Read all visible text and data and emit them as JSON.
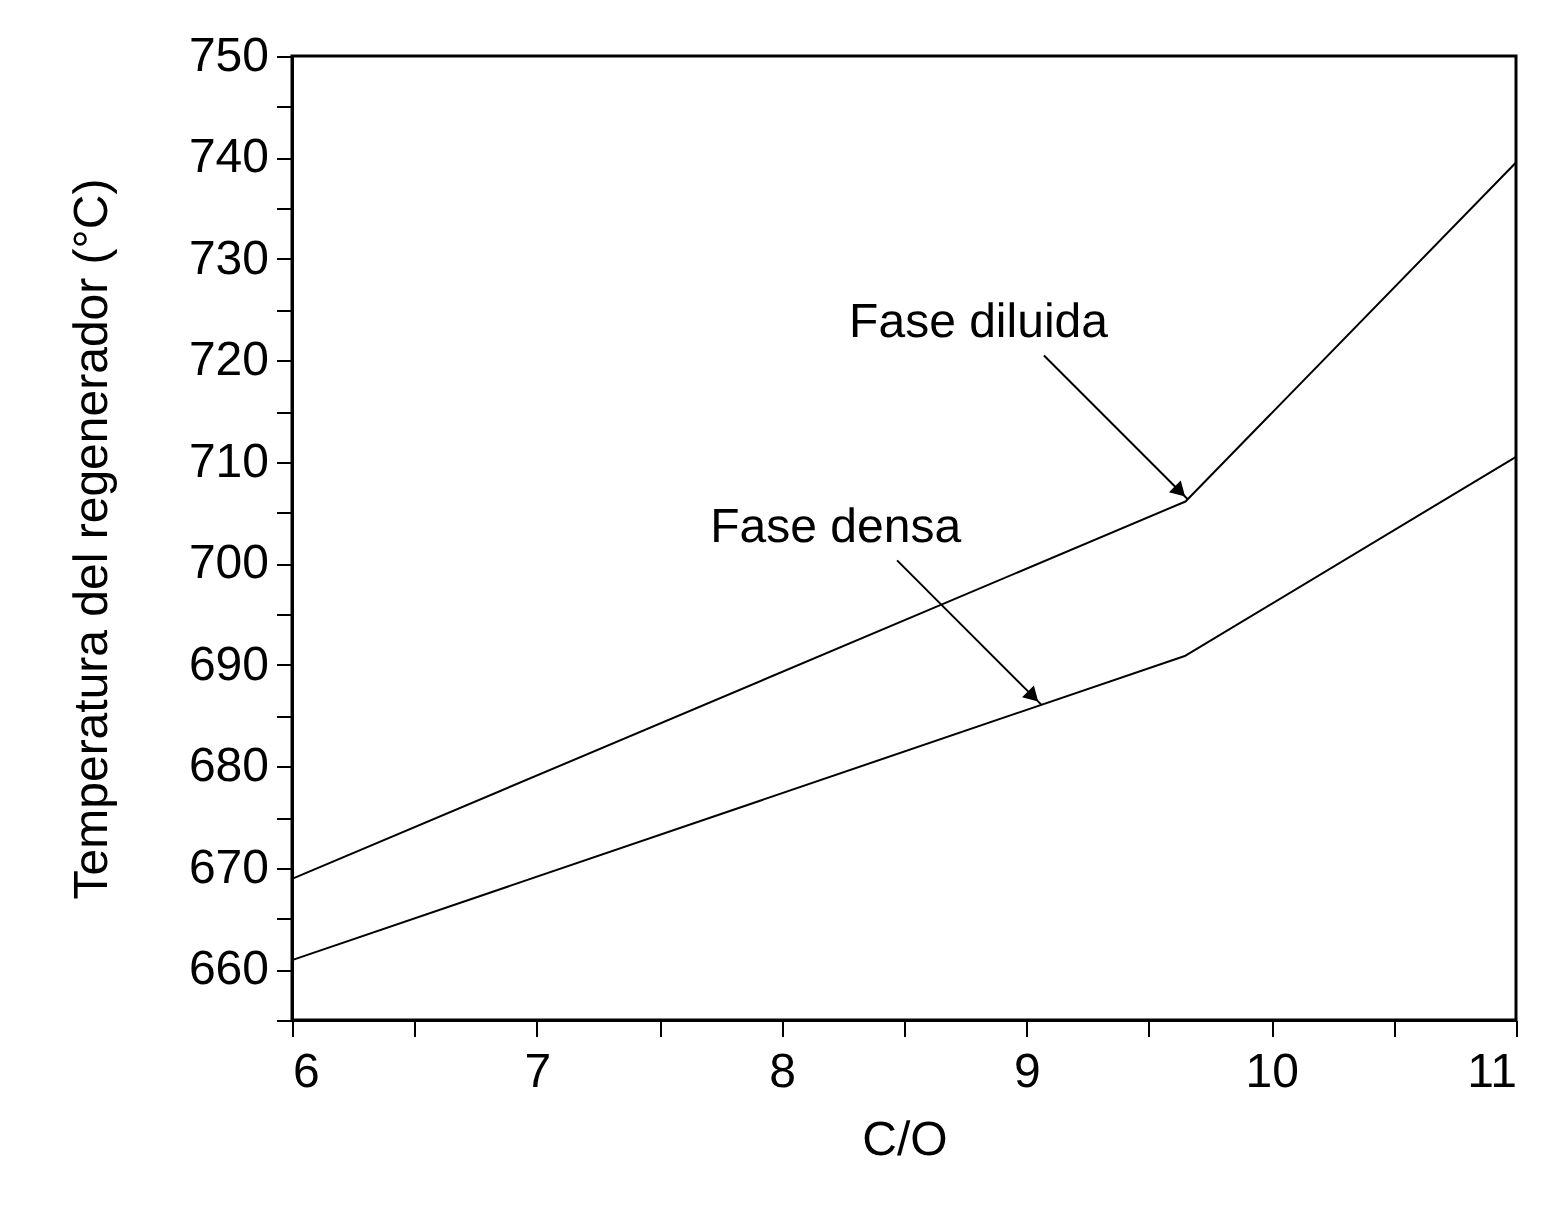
{
  "chart_data": {
    "type": "line",
    "xlabel": "C/O",
    "ylabel": "Temperatura del regenerador (°C)",
    "xlim": [
      6,
      11
    ],
    "ylim": [
      655,
      750
    ],
    "xticks": [
      6,
      {
        "value": 6.5,
        "label": null
      },
      7,
      {
        "value": 7.5,
        "label": null
      },
      8,
      {
        "value": 8.5,
        "label": null
      },
      9,
      {
        "value": 9.5,
        "label": null
      },
      10,
      {
        "value": 10.5,
        "label": null
      },
      11
    ],
    "yticks": [
      {
        "value": 655,
        "label": null
      },
      660,
      {
        "value": 665,
        "label": null
      },
      670,
      {
        "value": 675,
        "label": null
      },
      680,
      {
        "value": 685,
        "label": null
      },
      690,
      {
        "value": 695,
        "label": null
      },
      700,
      {
        "value": 705,
        "label": null
      },
      710,
      {
        "value": 715,
        "label": null
      },
      720,
      {
        "value": 725,
        "label": null
      },
      730,
      {
        "value": 735,
        "label": null
      },
      740,
      {
        "value": 745,
        "label": null
      },
      750
    ],
    "series": [
      {
        "color": "#000000",
        "x": [
          6,
          9.65,
          11
        ],
        "values": [
          668.9,
          706.1,
          739.5
        ]
      },
      {
        "color": "#000000",
        "x": [
          6,
          9.65,
          11
        ],
        "values": [
          660.9,
          690.9,
          710.5
        ]
      }
    ],
    "annotations": [
      {
        "text": "Fase diluida",
        "x": 9.66,
        "y": 706.3
      },
      {
        "text": "Fase densa",
        "x": 9.06,
        "y": 686.1
      }
    ],
    "grid": false,
    "legend": false,
    "marker": "none",
    "line_style": "solid"
  }
}
